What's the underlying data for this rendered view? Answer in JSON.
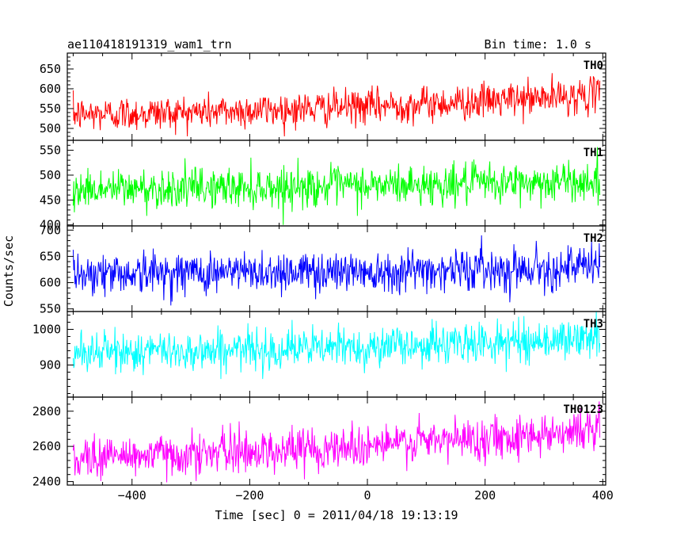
{
  "header": {
    "left_title": "ae110418191319_wam1_trn",
    "right_title": "Bin time: 1.0 s"
  },
  "chart_data": {
    "type": "line",
    "title": "ae110418191319_wam1_trn",
    "subtitle": "Bin time: 1.0 s",
    "xlabel": "Time [sec] 0 = 2011/04/18 19:13:19",
    "ylabel": "Counts/sec",
    "xlim": [
      -510,
      405
    ],
    "x_start": -500,
    "x_end": 395,
    "x_step": 1,
    "x_ticks": [
      -400,
      -200,
      0,
      200,
      400
    ],
    "x_tick_labels": [
      "−400",
      "−200",
      "0",
      "200",
      "400"
    ],
    "grid": false,
    "panels": [
      {
        "name": "TH0",
        "color": "#ff0000",
        "ylim": [
          470,
          690
        ],
        "y_ticks": [
          500,
          550,
          600,
          650
        ],
        "y_start": 535,
        "y_end": 585,
        "noise_sd": 22,
        "clip": [
          480,
          690
        ]
      },
      {
        "name": "TH1",
        "color": "#00ff00",
        "ylim": [
          398,
          570
        ],
        "y_ticks": [
          400,
          450,
          500,
          550
        ],
        "y_start": 472,
        "y_end": 488,
        "noise_sd": 20,
        "clip": [
          400,
          570
        ]
      },
      {
        "name": "TH2",
        "color": "#0000ff",
        "ylim": [
          545,
          708
        ],
        "y_ticks": [
          550,
          600,
          650,
          700
        ],
        "y_start": 618,
        "y_end": 630,
        "noise_sd": 20,
        "clip": [
          548,
          708
        ]
      },
      {
        "name": "TH3",
        "color": "#00ffff",
        "ylim": [
          810,
          1050
        ],
        "y_ticks": [
          900,
          1000
        ],
        "y_start": 935,
        "y_end": 975,
        "noise_sd": 28,
        "clip": [
          860,
          1050
        ]
      },
      {
        "name": "TH0123",
        "color": "#ff00ff",
        "ylim": [
          2380,
          2880
        ],
        "y_ticks": [
          2400,
          2600,
          2800
        ],
        "y_start": 2540,
        "y_end": 2700,
        "noise_sd": 60,
        "clip": [
          2380,
          2880
        ]
      }
    ]
  }
}
